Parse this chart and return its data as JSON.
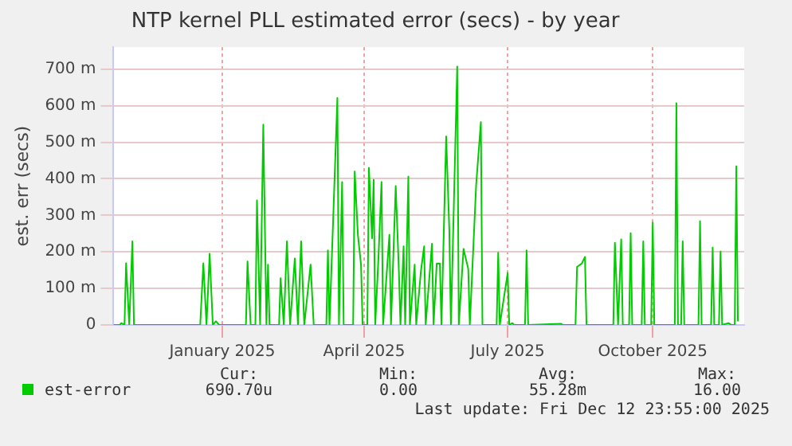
{
  "chart_data": {
    "type": "line",
    "title": "NTP kernel PLL estimated error (secs) - by year",
    "ylabel": "est. err (secs)",
    "xlim": [
      "2024-11-07",
      "2025-12-12"
    ],
    "xticks": [
      {
        "value": "2025-01-15",
        "label": "January 2025"
      },
      {
        "value": "2025-04-15",
        "label": "April 2025"
      },
      {
        "value": "2025-07-15",
        "label": "July 2025"
      },
      {
        "value": "2025-10-15",
        "label": "October 2025"
      }
    ],
    "ylim": [
      0,
      760
    ],
    "yticks": [
      0,
      {
        "value": 100,
        "label": "100 m"
      },
      {
        "value": 200,
        "label": "200 m"
      },
      {
        "value": 300,
        "label": "300 m"
      },
      {
        "value": 400,
        "label": "400 m"
      },
      {
        "value": 500,
        "label": "500 m"
      },
      {
        "value": 600,
        "label": "600 m"
      },
      {
        "value": 700,
        "label": "700 m"
      }
    ],
    "grid": true,
    "legend": "bottom",
    "marker": "none",
    "x": [
      "2024-11-07",
      "2024-11-11",
      "2024-11-12",
      "2024-11-14",
      "2024-11-15",
      "2024-11-17",
      "2024-11-19",
      "2024-11-20",
      "2025-01-01",
      "2025-01-03",
      "2025-01-05",
      "2025-01-07",
      "2025-01-09",
      "2025-01-11",
      "2025-01-13",
      "2025-01-30",
      "2025-01-31",
      "2025-02-02",
      "2025-02-05",
      "2025-02-06",
      "2025-02-08",
      "2025-02-10",
      "2025-02-12",
      "2025-02-13",
      "2025-02-14",
      "2025-02-20",
      "2025-02-21",
      "2025-02-23",
      "2025-02-25",
      "2025-02-27",
      "2025-03-02",
      "2025-03-04",
      "2025-03-06",
      "2025-03-08",
      "2025-03-12",
      "2025-03-14",
      "2025-03-22",
      "2025-03-23",
      "2025-03-24",
      "2025-03-29",
      "2025-03-30",
      "2025-04-01",
      "2025-04-02",
      "2025-04-08",
      "2025-04-09",
      "2025-04-11",
      "2025-04-13",
      "2025-04-14",
      "2025-04-17",
      "2025-04-18",
      "2025-04-20",
      "2025-04-21",
      "2025-04-22",
      "2025-04-24",
      "2025-04-26",
      "2025-04-27",
      "2025-05-01",
      "2025-05-02",
      "2025-05-05",
      "2025-05-07",
      "2025-05-08",
      "2025-05-10",
      "2025-05-11",
      "2025-05-13",
      "2025-05-14",
      "2025-05-17",
      "2025-05-18",
      "2025-05-21",
      "2025-05-23",
      "2025-05-24",
      "2025-05-28",
      "2025-05-29",
      "2025-05-31",
      "2025-06-02",
      "2025-06-03",
      "2025-06-06",
      "2025-06-08",
      "2025-06-09",
      "2025-06-13",
      "2025-06-14",
      "2025-06-17",
      "2025-06-20",
      "2025-06-21",
      "2025-06-25",
      "2025-06-28",
      "2025-06-29",
      "2025-07-08",
      "2025-07-09",
      "2025-07-10",
      "2025-07-15",
      "2025-07-16",
      "2025-07-18",
      "2025-07-19",
      "2025-07-26",
      "2025-07-27",
      "2025-07-28",
      "2025-08-18",
      "2025-08-19",
      "2025-08-27",
      "2025-08-28",
      "2025-08-31",
      "2025-09-02",
      "2025-09-03",
      "2025-09-20",
      "2025-09-21",
      "2025-09-23",
      "2025-09-25",
      "2025-09-26",
      "2025-09-30",
      "2025-10-01",
      "2025-10-02",
      "2025-10-08",
      "2025-10-09",
      "2025-10-10",
      "2025-10-14",
      "2025-10-15",
      "2025-10-16",
      "2025-10-29",
      "2025-10-30",
      "2025-10-31",
      "2025-11-02",
      "2025-11-03",
      "2025-11-04",
      "2025-11-13",
      "2025-11-14",
      "2025-11-15",
      "2025-11-21",
      "2025-11-22",
      "2025-11-23",
      "2025-11-26",
      "2025-11-27",
      "2025-11-28",
      "2025-12-02",
      "2025-12-04",
      "2025-12-06",
      "2025-12-07",
      "2025-12-08"
    ],
    "series": [
      {
        "name": "est-error",
        "color": "#00cc00",
        "values": [
          0,
          0,
          5,
          0,
          169,
          0,
          229,
          0,
          0,
          169,
          0,
          195,
          0,
          10,
          0,
          0,
          174,
          0,
          0,
          341,
          0,
          548,
          0,
          165,
          0,
          0,
          128,
          0,
          229,
          0,
          182,
          0,
          229,
          0,
          165,
          0,
          0,
          204,
          0,
          621,
          0,
          391,
          0,
          0,
          420,
          247,
          165,
          0,
          0,
          430,
          237,
          397,
          0,
          179,
          391,
          0,
          247,
          0,
          380,
          148,
          0,
          215,
          0,
          406,
          0,
          165,
          0,
          148,
          215,
          0,
          222,
          0,
          168,
          168,
          0,
          516,
          258,
          0,
          707,
          0,
          208,
          153,
          0,
          383,
          555,
          0,
          0,
          198,
          0,
          142,
          0,
          5,
          0,
          0,
          204,
          0,
          3,
          0,
          0,
          159,
          168,
          186,
          0,
          0,
          225,
          0,
          234,
          0,
          0,
          251,
          0,
          0,
          229,
          0,
          0,
          280,
          0,
          0,
          607,
          0,
          0,
          229,
          0,
          0,
          284,
          0,
          0,
          212,
          0,
          0,
          201,
          0,
          5,
          0,
          0,
          434,
          10
        ]
      }
    ],
    "annotations": [
      "Cur:",
      "Min:",
      "Avg:",
      "Max:",
      "690.70u",
      "0.00",
      "55.28m",
      "16.00",
      "Last update: Fri Dec 12 23:55:00 2025"
    ]
  }
}
